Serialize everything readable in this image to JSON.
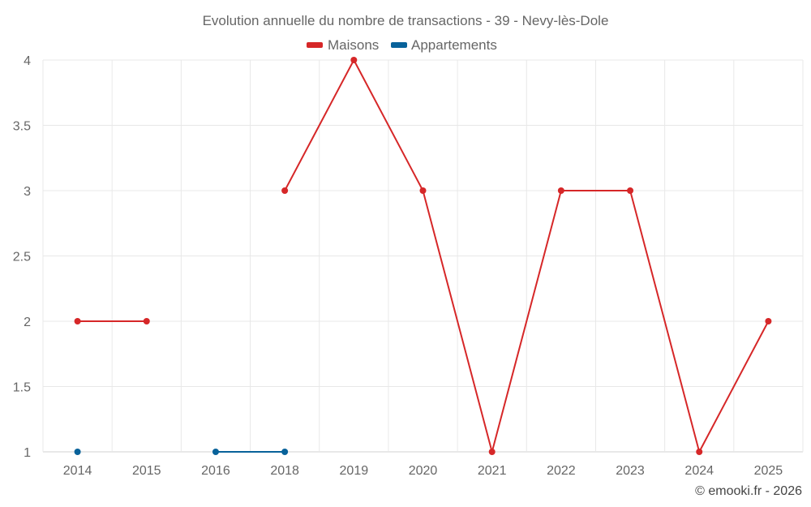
{
  "chart_data": {
    "type": "line",
    "title": "Evolution annuelle du nombre de transactions - 39 - Nevy-lès-Dole",
    "categories": [
      "2014",
      "2015",
      "2016",
      "2018",
      "2019",
      "2020",
      "2021",
      "2022",
      "2023",
      "2024",
      "2025"
    ],
    "ylim": [
      1,
      4
    ],
    "yticks": [
      1,
      1.5,
      2,
      2.5,
      3,
      3.5,
      4
    ],
    "ytick_labels": [
      "1",
      "1.5",
      "2",
      "2.5",
      "3",
      "3.5",
      "4"
    ],
    "grid": true,
    "legend_position": "top-center",
    "series": [
      {
        "name": "Maisons",
        "color": "#d62728",
        "values": [
          2,
          2,
          null,
          3,
          4,
          3,
          1,
          3,
          3,
          1,
          2
        ]
      },
      {
        "name": "Appartements",
        "color": "#08629a",
        "values": [
          1,
          null,
          1,
          1,
          null,
          null,
          null,
          null,
          null,
          null,
          null
        ]
      }
    ]
  },
  "credit": "© emooki.fr - 2026"
}
